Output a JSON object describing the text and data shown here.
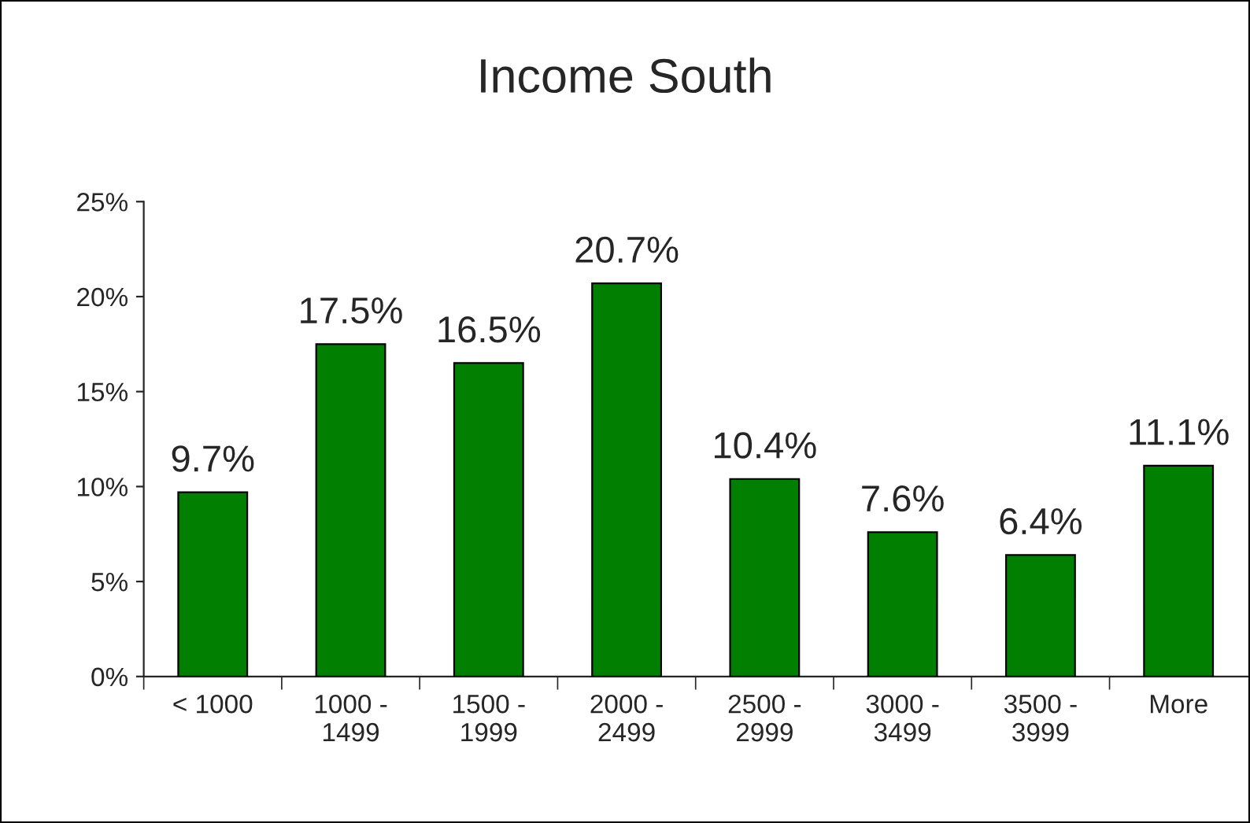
{
  "chart_data": {
    "type": "bar",
    "title": "Income South",
    "categories": [
      "< 1000",
      "1000 -\n1499",
      "1500 -\n1999",
      "2000 -\n2499",
      "2500 -\n2999",
      "3000 -\n3499",
      "3500 -\n3999",
      "More"
    ],
    "values": [
      9.7,
      17.5,
      16.5,
      20.7,
      10.4,
      7.6,
      6.4,
      11.1
    ],
    "value_labels": [
      "9.7%",
      "17.5%",
      "16.5%",
      "20.7%",
      "10.4%",
      "7.6%",
      "6.4%",
      "11.1%"
    ],
    "color": "#007f00",
    "ylim": [
      0,
      25
    ],
    "yticks": [
      {
        "value": 0,
        "label": "0%"
      },
      {
        "value": 5,
        "label": "5%"
      },
      {
        "value": 10,
        "label": "10%"
      },
      {
        "value": 15,
        "label": "15%"
      },
      {
        "value": 20,
        "label": "20%"
      },
      {
        "value": 25,
        "label": "25%"
      }
    ],
    "grid": false,
    "legend": false
  }
}
